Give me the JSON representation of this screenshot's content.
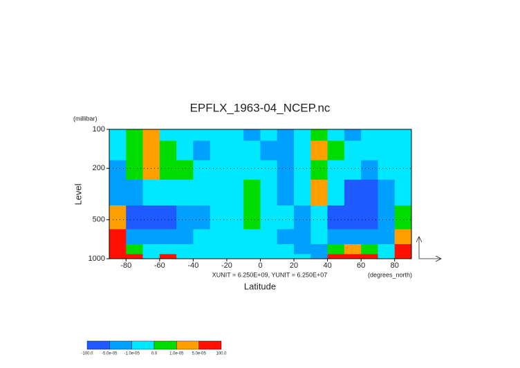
{
  "chart_data": {
    "type": "filled-contour",
    "title": "EPFLX_1963-04_NCEP.nc",
    "y_unit": "(millibar)",
    "ylabel": "Level",
    "xlabel": "Latitude",
    "note": "XUNIT = 6.250E+09, YUNIT = 6.250E+07",
    "x_unit": "(degrees_north)",
    "xlim": [
      -90,
      90
    ],
    "xticks": [
      -80,
      -60,
      -40,
      -20,
      0,
      20,
      40,
      60,
      80
    ],
    "ylim": [
      100,
      1000
    ],
    "yticks": [
      100,
      200,
      500,
      1000
    ],
    "log_y": true,
    "grid": true,
    "x": [
      -85,
      -75,
      -65,
      -55,
      -45,
      -35,
      -25,
      -15,
      -5,
      5,
      15,
      25,
      35,
      45,
      55,
      65,
      75,
      85
    ],
    "levels": [
      100,
      150,
      200,
      300,
      500,
      700,
      850,
      1000
    ],
    "values": [
      [
        -5e-06,
        5e-06,
        3e-05,
        -5e-06,
        -5e-06,
        -5e-06,
        -5e-06,
        -5e-06,
        -3e-05,
        -5e-06,
        -3e-05,
        -5e-06,
        5e-06,
        -5e-06,
        -3e-05,
        -5e-06,
        -5e-06,
        -5e-06
      ],
      [
        -5e-06,
        5e-06,
        3e-05,
        5e-06,
        -5e-06,
        -3e-05,
        -5e-06,
        -5e-06,
        -5e-06,
        -3e-05,
        -3e-05,
        -5e-06,
        3e-05,
        5e-06,
        -5e-06,
        -5e-06,
        -5e-06,
        -5e-06
      ],
      [
        -3e-05,
        5e-06,
        3e-05,
        5e-06,
        5e-06,
        -5e-06,
        -5e-06,
        -5e-06,
        -5e-06,
        -5e-06,
        -3e-05,
        -5e-06,
        5e-06,
        -5e-06,
        -5e-06,
        -3e-05,
        -5e-06,
        -5e-06
      ],
      [
        -3e-05,
        -3e-05,
        -5e-06,
        -5e-06,
        -5e-06,
        -5e-06,
        -5e-06,
        -5e-06,
        5e-06,
        -5e-06,
        -3e-05,
        -5e-06,
        3e-05,
        -5e-06,
        -8e-05,
        -8e-05,
        -3e-05,
        -5e-06
      ],
      [
        3e-05,
        -8e-05,
        -8e-05,
        -8e-05,
        -3e-05,
        -3e-05,
        -5e-06,
        -5e-06,
        5e-06,
        -5e-06,
        -5e-06,
        -3e-05,
        -5e-06,
        -8e-05,
        -8e-05,
        -8e-05,
        -3e-05,
        5e-06
      ],
      [
        0.0001,
        -3e-05,
        -3e-05,
        -3e-05,
        -3e-05,
        -5e-06,
        -5e-06,
        -5e-06,
        -5e-06,
        -5e-06,
        -3e-05,
        -3e-05,
        -5e-06,
        -3e-05,
        -3e-05,
        -3e-05,
        -3e-05,
        3e-05
      ],
      [
        0.0001,
        5e-06,
        -5e-06,
        -5e-06,
        -5e-06,
        -5e-06,
        -5e-06,
        -5e-06,
        -5e-06,
        -5e-06,
        -5e-06,
        -3e-05,
        -3e-05,
        5e-06,
        3e-05,
        5e-06,
        -5e-06,
        0.0001
      ],
      [
        0.0001,
        0.0001,
        -5e-06,
        0.0001,
        -5e-06,
        -5e-06,
        -5e-06,
        -5e-06,
        -5e-06,
        -5e-06,
        -5e-06,
        -5e-06,
        -3e-05,
        0.0001,
        0.0001,
        0.0001,
        -5e-06,
        0.0001
      ]
    ],
    "colorbar": {
      "ticks": [
        {
          "value": -100,
          "label": "-100.0"
        },
        {
          "value": -5e-05,
          "label": "-5.0e-05"
        },
        {
          "value": -1e-05,
          "label": "-1.0e-05"
        },
        {
          "value": 0,
          "label": "0.0"
        },
        {
          "value": 1e-05,
          "label": "1.0e-05"
        },
        {
          "value": 5e-05,
          "label": "5.0e-05"
        },
        {
          "value": 100,
          "label": "100.0"
        }
      ],
      "colors": [
        "#1e5aff",
        "#00a0ff",
        "#00e8ff",
        "#00dc00",
        "#ffa000",
        "#ff1000"
      ]
    }
  }
}
